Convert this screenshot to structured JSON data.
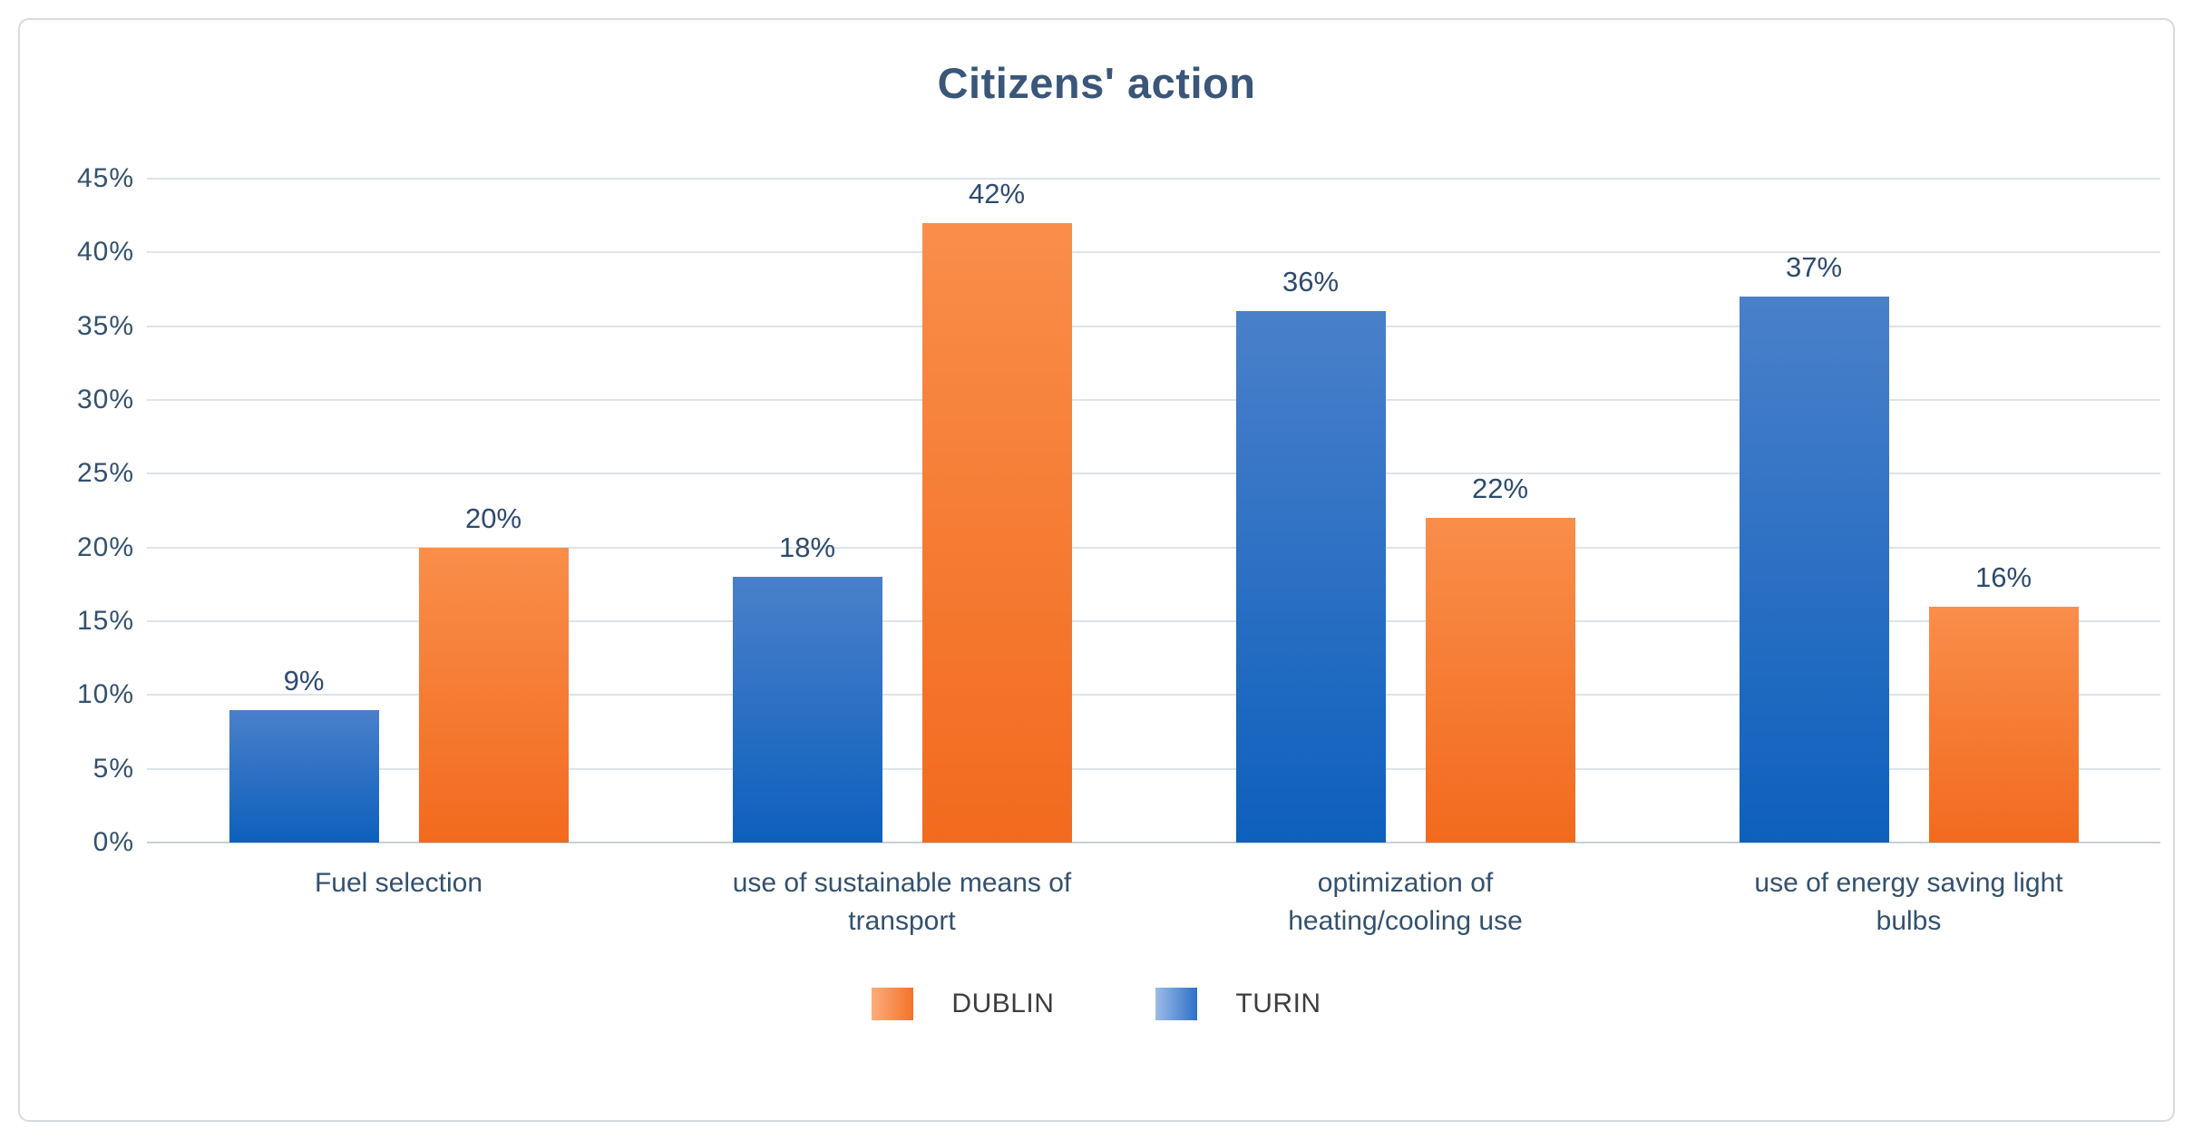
{
  "chart_data": {
    "type": "bar",
    "title": "Citizens' action",
    "categories": [
      "Fuel selection",
      "use of sustainable means of\ntransport",
      "optimization of\nheating/cooling use",
      "use of energy saving light\nbulbs"
    ],
    "categories_full_text": [
      "Fuel selection",
      "use of sustainable means of transport",
      "optimization of heating/cooling use",
      "use of energy saving light bulbs"
    ],
    "series": [
      {
        "name": "TURIN",
        "values": [
          9,
          18,
          36,
          37
        ],
        "color_top": "#4a80ca",
        "color_bottom": "#0d60bd"
      },
      {
        "name": "DUBLIN",
        "values": [
          20,
          42,
          22,
          16
        ],
        "color_top": "#f98e4a",
        "color_bottom": "#f26a1e"
      }
    ],
    "data_labels": [
      "9%",
      "20%",
      "18%",
      "42%",
      "36%",
      "22%",
      "37%",
      "16%"
    ],
    "yticks": [
      "45%",
      "40%",
      "35%",
      "30%",
      "25%",
      "20%",
      "15%",
      "10%",
      "5%",
      "0%"
    ],
    "ylim": [
      0,
      45
    ],
    "grid": true,
    "legend_position": "bottom",
    "legend": [
      {
        "label": "DUBLIN",
        "swatch_light": "#fbad7e",
        "swatch_dark": "#f47329"
      },
      {
        "label": "TURIN",
        "swatch_light": "#9dbce8",
        "swatch_dark": "#2d71c8"
      }
    ],
    "colors": {
      "title_text": "#3a5679",
      "axis_text": "#33516e",
      "data_label_text": "#2e4a6e",
      "gridline": "#dde4e9"
    }
  }
}
